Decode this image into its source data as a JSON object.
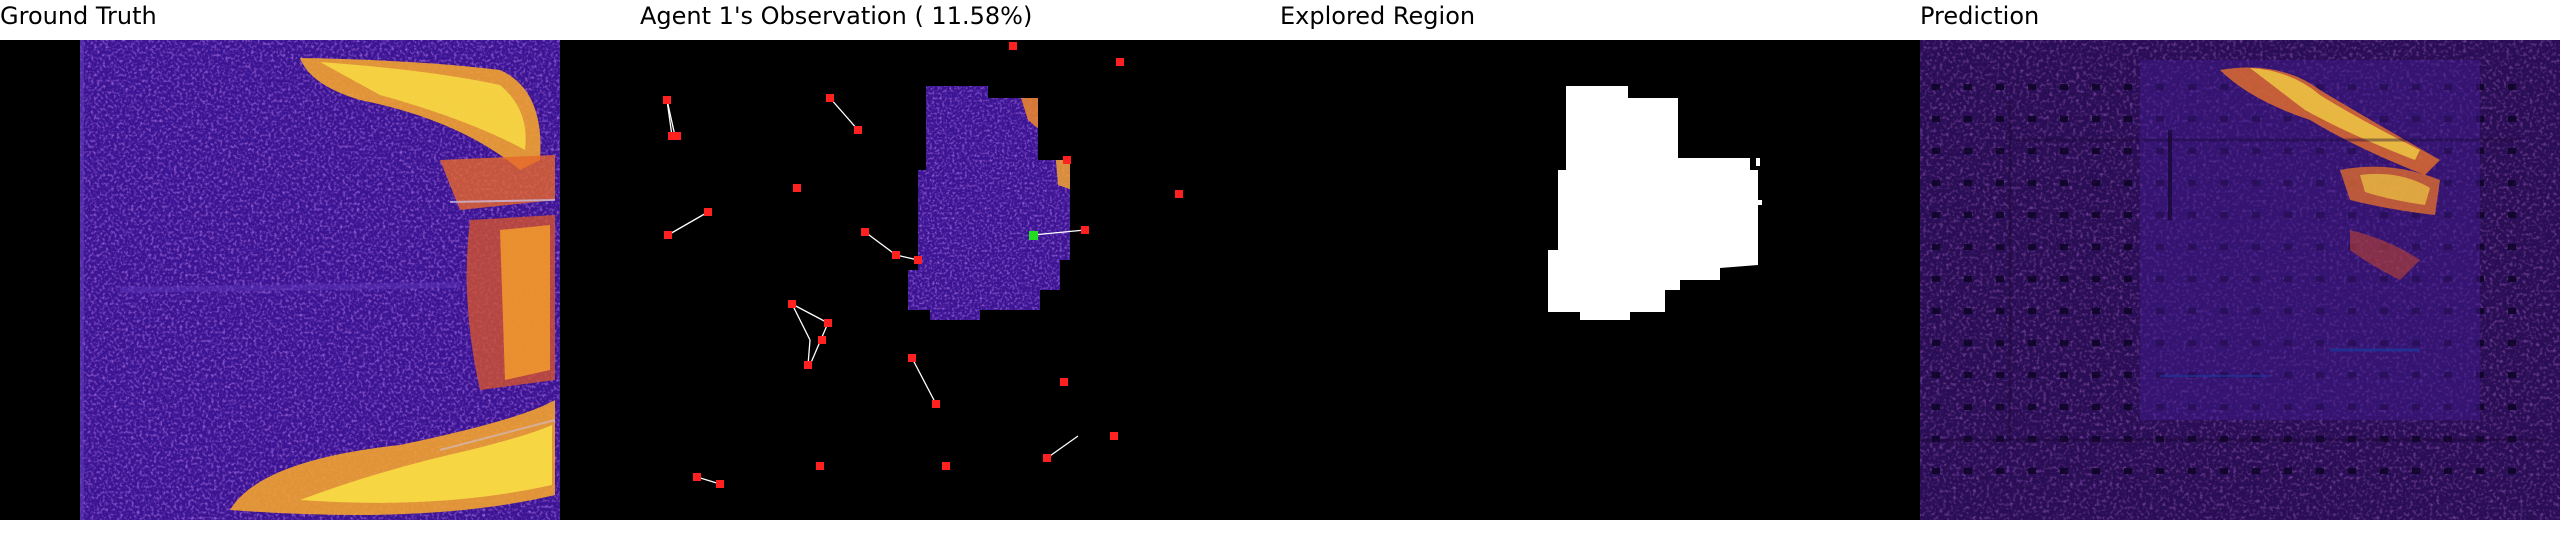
{
  "panels": {
    "ground_truth": {
      "title": "Ground Truth"
    },
    "observation": {
      "title": "Agent 1's Observation ( 11.58%)"
    },
    "explored": {
      "title": "Explored Region"
    },
    "prediction": {
      "title": "Prediction"
    }
  },
  "colors": {
    "background": "#000000",
    "heat_low": "#2a0c6b",
    "heat_mid": "#4b1ba8",
    "heat_high": "#e8702a",
    "heat_peak": "#fbe646",
    "agent_marker": "#ff2020",
    "current_agent": "#22dd22",
    "explored_mask": "#ffffff"
  }
}
